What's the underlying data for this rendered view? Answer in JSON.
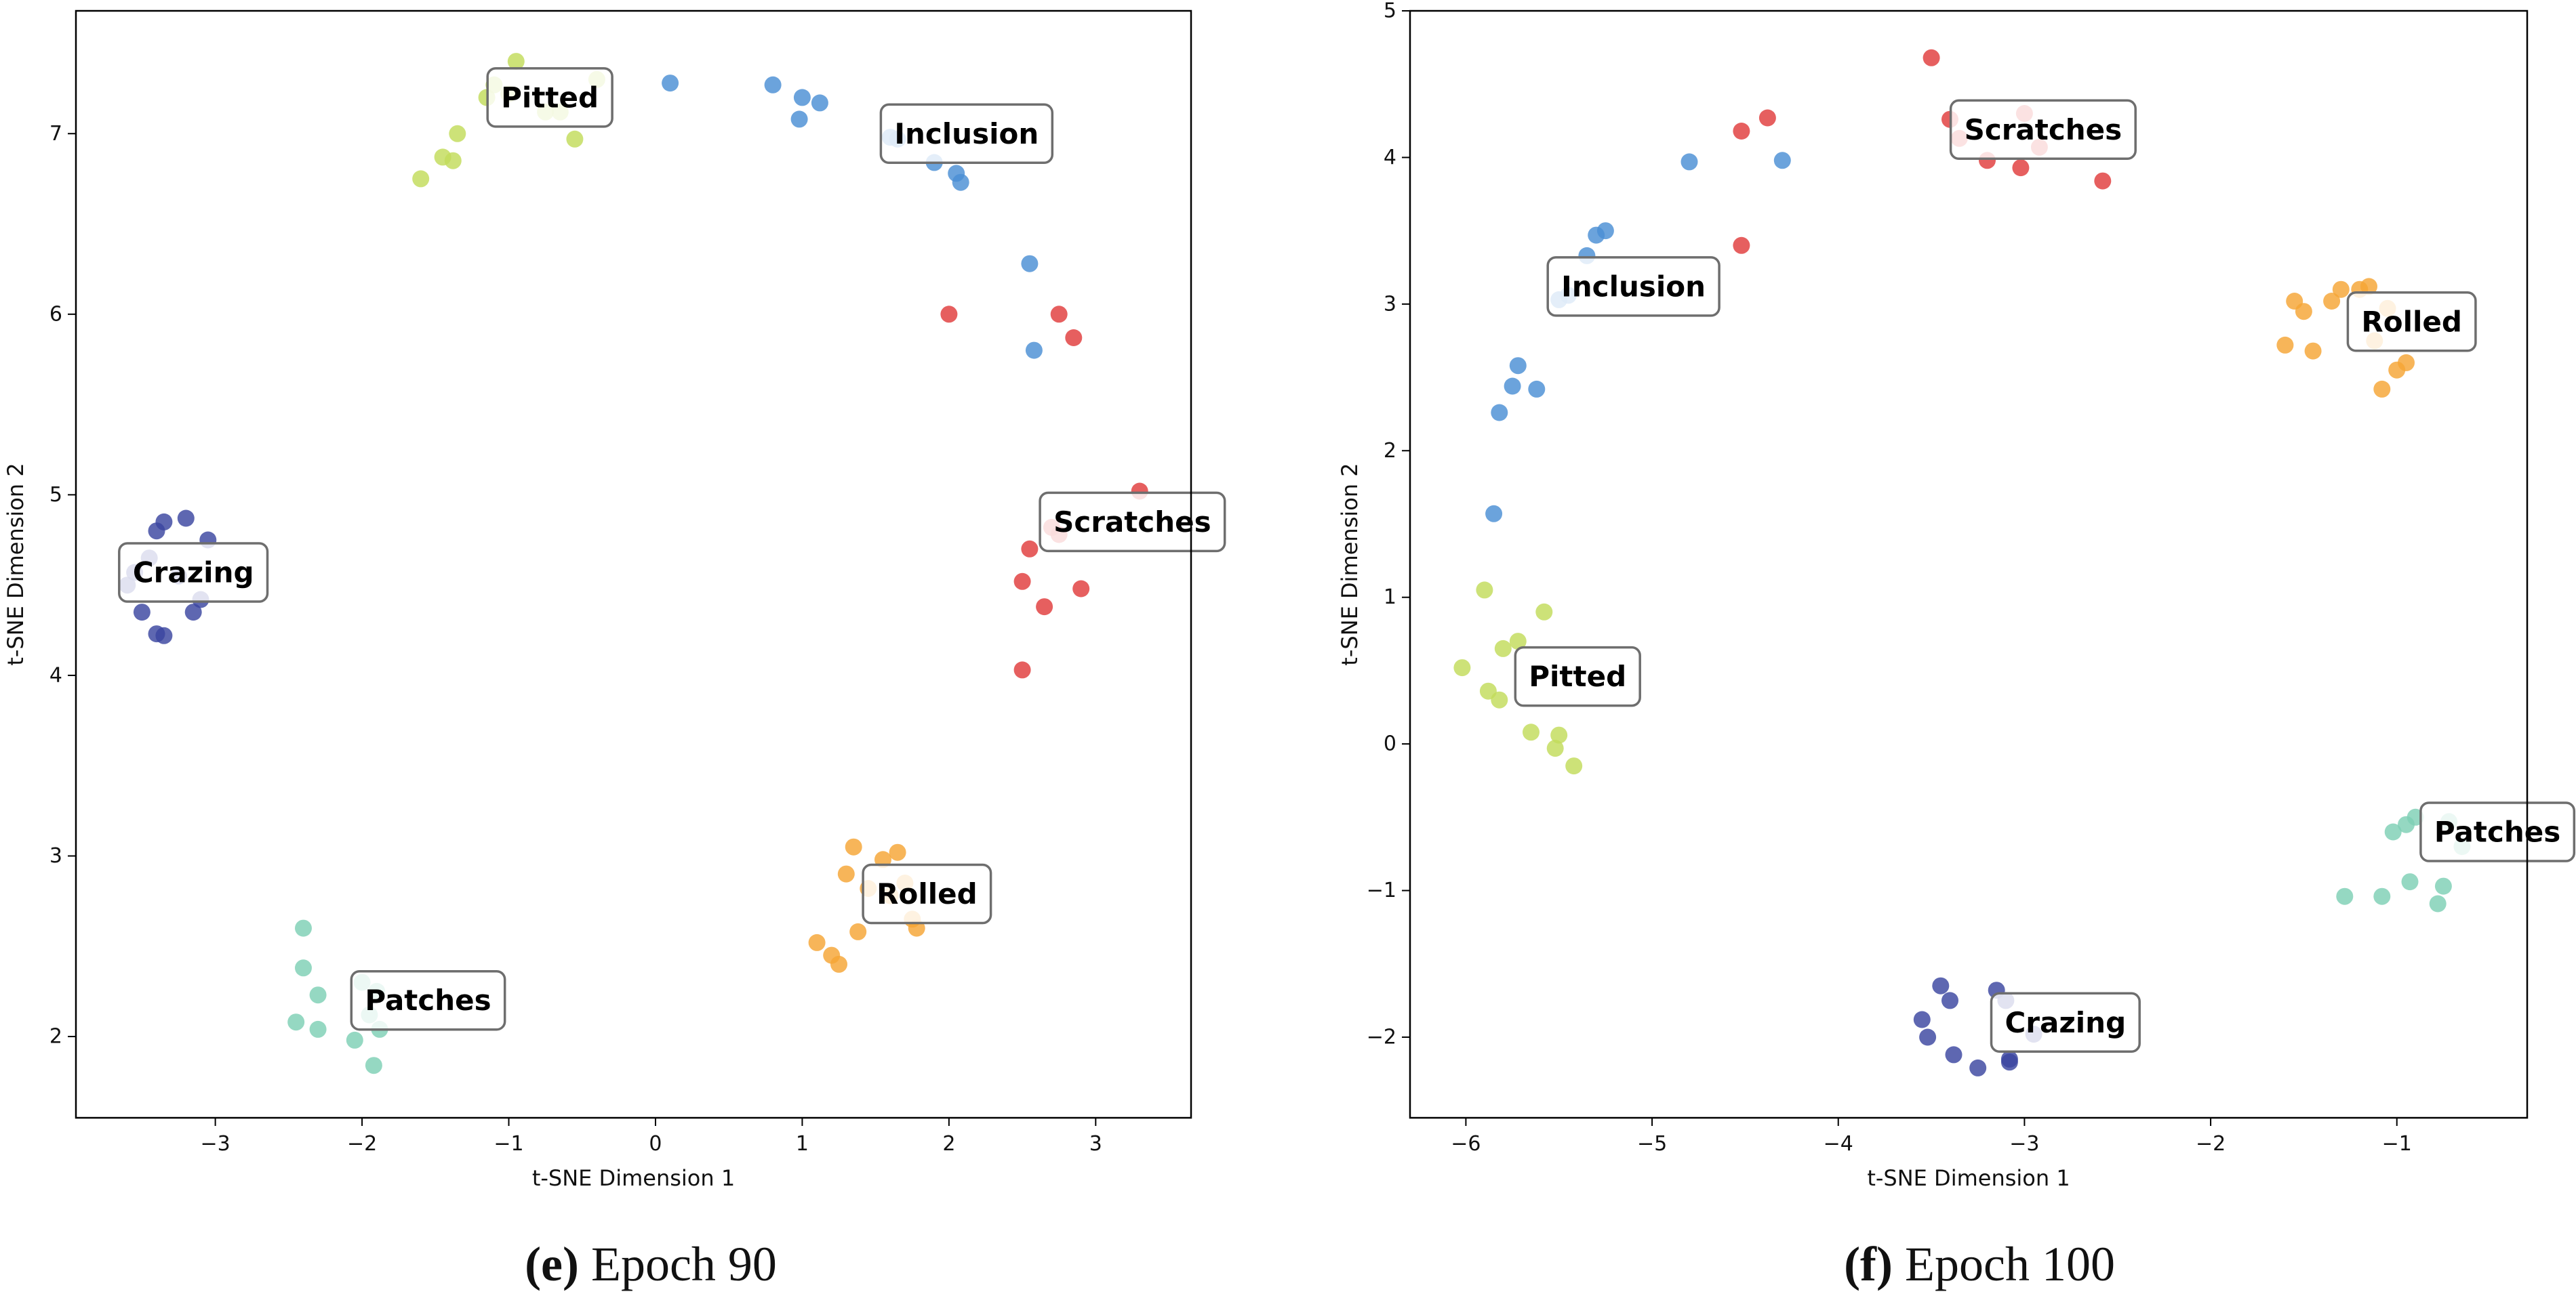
{
  "chart_data": [
    {
      "type": "scatter",
      "caption_letter": "(e)",
      "caption_text": " Epoch 90",
      "xlabel": "t-SNE Dimension 1",
      "ylabel": "t-SNE Dimension 2",
      "xlim": [
        -3.95,
        3.65
      ],
      "ylim": [
        1.55,
        7.68
      ],
      "xticks": [
        -3,
        -2,
        -1,
        0,
        1,
        2,
        3
      ],
      "xtick_labels": [
        "−3",
        "−2",
        "−1",
        "0",
        "1",
        "2",
        "3"
      ],
      "yticks": [
        2,
        3,
        4,
        5,
        6,
        7
      ],
      "ytick_labels": [
        "2",
        "3",
        "4",
        "5",
        "6",
        "7"
      ],
      "grid": false,
      "series": [
        {
          "name": "Crazing",
          "color": "#3a45a0",
          "label_at": [
            -3.15,
            4.57
          ],
          "points": [
            [
              -3.6,
              4.5
            ],
            [
              -3.55,
              4.57
            ],
            [
              -3.5,
              4.35
            ],
            [
              -3.4,
              4.8
            ],
            [
              -3.35,
              4.85
            ],
            [
              -3.2,
              4.87
            ],
            [
              -3.05,
              4.75
            ],
            [
              -3.45,
              4.65
            ],
            [
              -3.4,
              4.23
            ],
            [
              -3.35,
              4.22
            ],
            [
              -3.15,
              4.35
            ],
            [
              -3.1,
              4.42
            ],
            [
              -3.25,
              4.55
            ]
          ]
        },
        {
          "name": "Pitted",
          "color": "#c2dc5a",
          "label_at": [
            -0.72,
            7.2
          ],
          "points": [
            [
              -1.6,
              6.75
            ],
            [
              -1.45,
              6.87
            ],
            [
              -1.38,
              6.85
            ],
            [
              -1.35,
              7.0
            ],
            [
              -1.15,
              7.2
            ],
            [
              -1.1,
              7.27
            ],
            [
              -0.95,
              7.4
            ],
            [
              -0.75,
              7.12
            ],
            [
              -0.65,
              7.12
            ],
            [
              -0.55,
              6.97
            ],
            [
              -0.4,
              7.3
            ],
            [
              -1.0,
              7.22
            ]
          ]
        },
        {
          "name": "Inclusion",
          "color": "#4a8fd4",
          "label_at": [
            2.12,
            7.0
          ],
          "points": [
            [
              0.1,
              7.28
            ],
            [
              0.8,
              7.27
            ],
            [
              0.98,
              7.08
            ],
            [
              1.0,
              7.2
            ],
            [
              1.12,
              7.17
            ],
            [
              1.6,
              6.98
            ],
            [
              1.65,
              6.97
            ],
            [
              1.9,
              6.84
            ],
            [
              2.05,
              6.78
            ],
            [
              2.08,
              6.73
            ],
            [
              2.55,
              6.28
            ],
            [
              2.58,
              5.8
            ]
          ]
        },
        {
          "name": "Scratches",
          "color": "#e03c3c",
          "label_at": [
            3.25,
            4.85
          ],
          "points": [
            [
              2.0,
              6.0
            ],
            [
              2.75,
              6.0
            ],
            [
              2.85,
              5.87
            ],
            [
              3.3,
              5.02
            ],
            [
              2.7,
              4.82
            ],
            [
              2.75,
              4.78
            ],
            [
              2.55,
              4.7
            ],
            [
              2.5,
              4.52
            ],
            [
              2.9,
              4.48
            ],
            [
              2.65,
              4.38
            ],
            [
              2.5,
              4.03
            ]
          ]
        },
        {
          "name": "Rolled",
          "color": "#f5a534",
          "label_at": [
            1.85,
            2.79
          ],
          "points": [
            [
              1.35,
              3.05
            ],
            [
              1.55,
              2.98
            ],
            [
              1.65,
              3.02
            ],
            [
              1.7,
              2.85
            ],
            [
              1.6,
              2.78
            ],
            [
              1.3,
              2.9
            ],
            [
              1.45,
              2.82
            ],
            [
              1.75,
              2.65
            ],
            [
              1.78,
              2.6
            ],
            [
              1.38,
              2.58
            ],
            [
              1.1,
              2.52
            ],
            [
              1.2,
              2.45
            ],
            [
              1.25,
              2.4
            ]
          ]
        },
        {
          "name": "Patches",
          "color": "#7ecfb5",
          "label_at": [
            -1.55,
            2.2
          ],
          "points": [
            [
              -2.4,
              2.6
            ],
            [
              -2.4,
              2.38
            ],
            [
              -2.3,
              2.23
            ],
            [
              -2.45,
              2.08
            ],
            [
              -2.3,
              2.04
            ],
            [
              -2.0,
              2.3
            ],
            [
              -1.9,
              2.25
            ],
            [
              -2.05,
              1.98
            ],
            [
              -1.88,
              2.04
            ],
            [
              -1.92,
              1.84
            ],
            [
              -1.95,
              2.12
            ]
          ]
        }
      ]
    },
    {
      "type": "scatter",
      "caption_letter": "(f)",
      "caption_text": " Epoch 100",
      "xlabel": "t-SNE Dimension 1",
      "ylabel": "t-SNE Dimension 2",
      "xlim": [
        -6.3,
        -0.3
      ],
      "ylim": [
        -2.55,
        5.0
      ],
      "xticks": [
        -6,
        -5,
        -4,
        -3,
        -2,
        -1
      ],
      "xtick_labels": [
        "−6",
        "−5",
        "−4",
        "−3",
        "−2",
        "−1"
      ],
      "yticks": [
        -2,
        -1,
        0,
        1,
        2,
        3,
        4,
        5
      ],
      "ytick_labels": [
        "−2",
        "−1",
        "0",
        "1",
        "2",
        "3",
        "4",
        "5"
      ],
      "grid": false,
      "series": [
        {
          "name": "Scratches",
          "color": "#e03c3c",
          "label_at": [
            -2.9,
            4.19
          ],
          "points": [
            [
              -3.5,
              4.68
            ],
            [
              -4.52,
              4.18
            ],
            [
              -4.38,
              4.27
            ],
            [
              -3.4,
              4.26
            ],
            [
              -3.35,
              4.13
            ],
            [
              -3.0,
              4.3
            ],
            [
              -2.92,
              4.07
            ],
            [
              -3.2,
              3.98
            ],
            [
              -3.02,
              3.93
            ],
            [
              -2.58,
              3.84
            ],
            [
              -4.52,
              3.4
            ]
          ]
        },
        {
          "name": "Inclusion",
          "color": "#4a8fd4",
          "label_at": [
            -5.1,
            3.12
          ],
          "points": [
            [
              -4.8,
              3.97
            ],
            [
              -4.3,
              3.98
            ],
            [
              -5.25,
              3.5
            ],
            [
              -5.3,
              3.47
            ],
            [
              -5.35,
              3.33
            ],
            [
              -5.5,
              3.03
            ],
            [
              -5.45,
              3.06
            ],
            [
              -5.72,
              2.58
            ],
            [
              -5.75,
              2.44
            ],
            [
              -5.62,
              2.42
            ],
            [
              -5.82,
              2.26
            ],
            [
              -5.85,
              1.57
            ]
          ]
        },
        {
          "name": "Rolled",
          "color": "#f5a534",
          "label_at": [
            -0.92,
            2.88
          ],
          "points": [
            [
              -1.55,
              3.02
            ],
            [
              -1.3,
              3.1
            ],
            [
              -1.2,
              3.1
            ],
            [
              -1.15,
              3.12
            ],
            [
              -1.35,
              3.02
            ],
            [
              -1.5,
              2.95
            ],
            [
              -1.05,
              2.97
            ],
            [
              -1.12,
              2.75
            ],
            [
              -1.6,
              2.72
            ],
            [
              -1.45,
              2.68
            ],
            [
              -0.95,
              2.6
            ],
            [
              -1.0,
              2.55
            ],
            [
              -1.08,
              2.42
            ]
          ]
        },
        {
          "name": "Pitted",
          "color": "#c2dc5a",
          "label_at": [
            -5.4,
            0.46
          ],
          "points": [
            [
              -5.9,
              1.05
            ],
            [
              -5.58,
              0.9
            ],
            [
              -5.72,
              0.7
            ],
            [
              -5.8,
              0.65
            ],
            [
              -6.02,
              0.52
            ],
            [
              -5.88,
              0.36
            ],
            [
              -5.82,
              0.3
            ],
            [
              -5.65,
              0.08
            ],
            [
              -5.5,
              0.06
            ],
            [
              -5.52,
              -0.03
            ],
            [
              -5.42,
              -0.15
            ]
          ]
        },
        {
          "name": "Patches",
          "color": "#7ecfb5",
          "label_at": [
            -0.46,
            -0.6
          ],
          "points": [
            [
              -0.95,
              -0.55
            ],
            [
              -1.02,
              -0.6
            ],
            [
              -0.9,
              -0.5
            ],
            [
              -0.72,
              -0.53
            ],
            [
              -0.65,
              -0.7
            ],
            [
              -1.28,
              -1.04
            ],
            [
              -1.08,
              -1.04
            ],
            [
              -0.93,
              -0.94
            ],
            [
              -0.75,
              -0.97
            ],
            [
              -0.78,
              -1.09
            ]
          ]
        },
        {
          "name": "Crazing",
          "color": "#3a45a0",
          "label_at": [
            -2.78,
            -1.9
          ],
          "points": [
            [
              -3.45,
              -1.65
            ],
            [
              -3.4,
              -1.75
            ],
            [
              -3.15,
              -1.68
            ],
            [
              -3.1,
              -1.75
            ],
            [
              -3.55,
              -1.88
            ],
            [
              -3.52,
              -2.0
            ],
            [
              -3.38,
              -2.12
            ],
            [
              -3.08,
              -2.15
            ],
            [
              -3.08,
              -2.17
            ],
            [
              -3.25,
              -2.21
            ],
            [
              -2.95,
              -1.98
            ]
          ]
        }
      ]
    }
  ]
}
